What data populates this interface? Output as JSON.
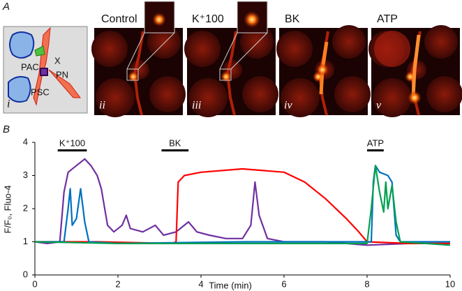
{
  "panel_a": {
    "label": "A",
    "schematic": {
      "roman": "i",
      "labels": [
        "PAC",
        "X",
        "PN",
        "PSC"
      ]
    },
    "images": [
      {
        "title": "Control",
        "roman": "ii"
      },
      {
        "title": "K⁺100",
        "roman": "iii"
      },
      {
        "title": "BK",
        "roman": "iv"
      },
      {
        "title": "ATP",
        "roman": "v"
      }
    ]
  },
  "chart_data": {
    "type": "line",
    "panel_label": "B",
    "xlabel": "Time (min)",
    "ylabel": "F/F₀, Fluo-4",
    "xlim": [
      0,
      10
    ],
    "ylim": [
      0,
      4
    ],
    "xticks": [
      0,
      2,
      4,
      6,
      8,
      10
    ],
    "yticks": [
      0,
      1,
      2,
      3,
      4
    ],
    "stimuli": [
      {
        "label": "K⁺100",
        "start": 0.55,
        "end": 1.25
      },
      {
        "label": "BK",
        "start": 3.05,
        "end": 3.7
      },
      {
        "label": "ATP",
        "start": 8.0,
        "end": 8.4
      }
    ],
    "series": [
      {
        "color": "#7030a0",
        "x": [
          0,
          0.3,
          0.6,
          0.7,
          0.8,
          1.0,
          1.2,
          1.35,
          1.5,
          1.6,
          1.75,
          1.9,
          2.1,
          2.2,
          2.3,
          2.6,
          2.9,
          3.1,
          3.4,
          3.7,
          3.9,
          4.2,
          4.6,
          5.0,
          5.2,
          5.3,
          5.4,
          5.6,
          6.0,
          7.0,
          8.0,
          9.0,
          10.0
        ],
        "values": [
          1.0,
          0.95,
          1.0,
          2.5,
          3.1,
          3.3,
          3.5,
          3.3,
          3.0,
          2.6,
          1.5,
          1.3,
          1.5,
          1.8,
          1.4,
          1.3,
          1.5,
          1.2,
          1.3,
          1.6,
          1.3,
          1.2,
          1.1,
          1.1,
          1.5,
          2.8,
          1.8,
          1.1,
          1.0,
          1.0,
          0.9,
          0.95,
          0.95
        ]
      },
      {
        "color": "#ff0000",
        "x": [
          0,
          1.5,
          3.3,
          3.4,
          3.45,
          3.6,
          4.0,
          5.0,
          6.0,
          6.5,
          7.0,
          7.5,
          7.8,
          8.0,
          9.0,
          10.0
        ],
        "values": [
          1.0,
          1.0,
          0.95,
          1.0,
          2.8,
          3.0,
          3.1,
          3.2,
          3.1,
          2.8,
          2.3,
          1.7,
          1.3,
          1.0,
          0.95,
          0.95
        ]
      },
      {
        "color": "#0070c0",
        "x": [
          0,
          0.7,
          0.8,
          0.85,
          0.9,
          1.0,
          1.1,
          1.2,
          1.3,
          2.0,
          5.0,
          8.1,
          8.15,
          8.2,
          8.3,
          8.5,
          8.6,
          8.7,
          8.8,
          10.0
        ],
        "values": [
          1.0,
          1.0,
          2.0,
          2.6,
          1.5,
          1.7,
          2.6,
          1.6,
          1.0,
          0.95,
          1.0,
          1.0,
          2.8,
          3.3,
          3.1,
          3.0,
          2.8,
          1.2,
          1.0,
          1.0
        ]
      },
      {
        "color": "#00a050",
        "x": [
          0,
          2.0,
          5.0,
          8.0,
          8.1,
          8.2,
          8.3,
          8.4,
          8.45,
          8.5,
          8.6,
          8.7,
          8.8,
          10.0
        ],
        "values": [
          1.0,
          0.95,
          0.95,
          0.95,
          2.0,
          3.3,
          2.5,
          1.9,
          2.8,
          2.0,
          2.7,
          1.6,
          1.0,
          0.9
        ]
      }
    ]
  }
}
